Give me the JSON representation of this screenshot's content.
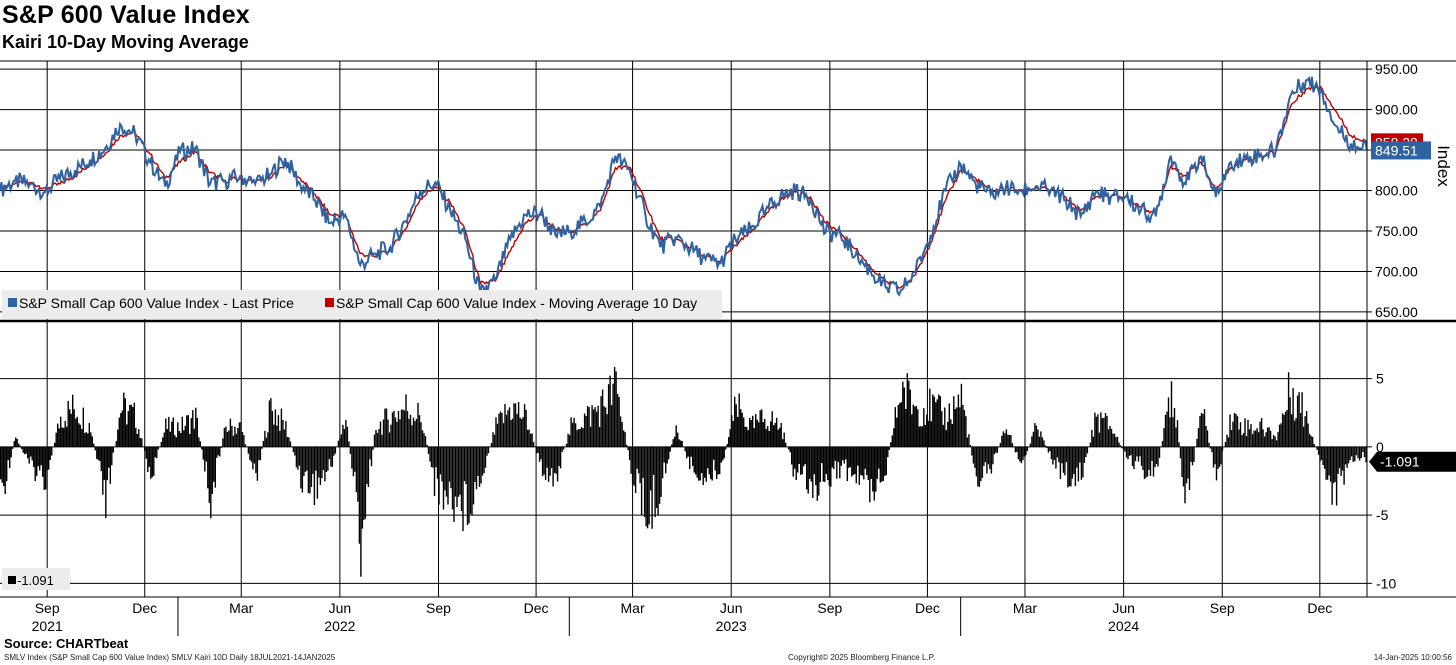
{
  "header": {
    "title": "S&P 600 Value Index",
    "subtitle": "Kairi 10-Day Moving Average"
  },
  "footer": {
    "source": "Source: CHARTbeat",
    "left": "SMLV Index (S&P Small Cap 600 Value Index) SMLV Kairi 10D  Daily 18JUL2021-14JAN2025",
    "center": "Copyright© 2025 Bloomberg Finance L.P.",
    "right": "14-Jan-2025 10:00:56"
  },
  "colors": {
    "price": "#2e62a0",
    "ma": "#c00000",
    "bars": "#000000",
    "grid": "#000000"
  },
  "chart_data": [
    {
      "type": "line",
      "ylabel": "Index",
      "ylim": [
        640,
        960
      ],
      "yticks": [
        "950.00",
        "900.00",
        "850.00",
        "800.00",
        "750.00",
        "700.00",
        "650.00"
      ],
      "xlim": [
        "2021-07-19",
        "2025-01-14"
      ],
      "month_ticks": [
        "Sep",
        "Dec",
        "Mar",
        "Jun",
        "Sep",
        "Dec",
        "Mar",
        "Jun",
        "Sep",
        "Dec",
        "Mar",
        "Jun",
        "Sep",
        "Dec"
      ],
      "year_ticks": [
        "2021",
        "2022",
        "2023",
        "2024"
      ],
      "grid": true,
      "legend_position": "bottom-left",
      "series": [
        {
          "name": "S&P Small Cap 600 Value Index - Last Price",
          "last_label": "849.51",
          "x": [
            "2021-07-19",
            "2021-08-02",
            "2021-08-16",
            "2021-08-30",
            "2021-09-13",
            "2021-09-27",
            "2021-10-11",
            "2021-10-25",
            "2021-11-08",
            "2021-11-22",
            "2021-12-06",
            "2021-12-20",
            "2022-01-03",
            "2022-01-17",
            "2022-01-31",
            "2022-02-14",
            "2022-02-28",
            "2022-03-14",
            "2022-03-28",
            "2022-04-11",
            "2022-04-25",
            "2022-05-09",
            "2022-05-23",
            "2022-06-06",
            "2022-06-20",
            "2022-07-04",
            "2022-07-18",
            "2022-08-01",
            "2022-08-15",
            "2022-08-29",
            "2022-09-12",
            "2022-09-26",
            "2022-10-10",
            "2022-10-24",
            "2022-11-07",
            "2022-11-21",
            "2022-12-05",
            "2022-12-19",
            "2023-01-02",
            "2023-01-16",
            "2023-01-30",
            "2023-02-13",
            "2023-02-27",
            "2023-03-13",
            "2023-03-27",
            "2023-04-10",
            "2023-04-24",
            "2023-05-08",
            "2023-05-22",
            "2023-06-05",
            "2023-06-19",
            "2023-07-03",
            "2023-07-17",
            "2023-07-31",
            "2023-08-14",
            "2023-08-28",
            "2023-09-11",
            "2023-09-25",
            "2023-10-09",
            "2023-10-23",
            "2023-11-06",
            "2023-11-20",
            "2023-12-04",
            "2023-12-18",
            "2024-01-01",
            "2024-01-15",
            "2024-01-29",
            "2024-02-12",
            "2024-02-26",
            "2024-03-11",
            "2024-03-25",
            "2024-04-08",
            "2024-04-22",
            "2024-05-06",
            "2024-05-20",
            "2024-06-03",
            "2024-06-17",
            "2024-07-01",
            "2024-07-15",
            "2024-07-29",
            "2024-08-12",
            "2024-08-26",
            "2024-09-09",
            "2024-09-23",
            "2024-10-07",
            "2024-10-21",
            "2024-11-04",
            "2024-11-18",
            "2024-12-02",
            "2024-12-16",
            "2024-12-30",
            "2025-01-14"
          ],
          "values": [
            800,
            812,
            808,
            798,
            815,
            825,
            838,
            852,
            882,
            870,
            835,
            805,
            848,
            852,
            808,
            812,
            818,
            808,
            820,
            840,
            808,
            788,
            760,
            770,
            708,
            722,
            730,
            762,
            800,
            810,
            775,
            740,
            672,
            690,
            740,
            770,
            772,
            745,
            750,
            762,
            780,
            843,
            822,
            770,
            730,
            742,
            728,
            715,
            710,
            740,
            752,
            775,
            793,
            800,
            790,
            748,
            745,
            720,
            700,
            680,
            676,
            700,
            745,
            800,
            832,
            808,
            795,
            803,
            800,
            805,
            800,
            788,
            768,
            798,
            792,
            792,
            775,
            768,
            843,
            808,
            842,
            792,
            835,
            840,
            845,
            850,
            918,
            936,
            925,
            880,
            858,
            849.51
          ]
        },
        {
          "name": "S&P Small Cap 600 Value Index - Moving Average 10 Day",
          "last_label": "858.28",
          "x": [
            "2021-07-19",
            "2021-08-02",
            "2021-08-16",
            "2021-08-30",
            "2021-09-13",
            "2021-09-27",
            "2021-10-11",
            "2021-10-25",
            "2021-11-08",
            "2021-11-22",
            "2021-12-06",
            "2021-12-20",
            "2022-01-03",
            "2022-01-17",
            "2022-01-31",
            "2022-02-14",
            "2022-02-28",
            "2022-03-14",
            "2022-03-28",
            "2022-04-11",
            "2022-04-25",
            "2022-05-09",
            "2022-05-23",
            "2022-06-06",
            "2022-06-20",
            "2022-07-04",
            "2022-07-18",
            "2022-08-01",
            "2022-08-15",
            "2022-08-29",
            "2022-09-12",
            "2022-09-26",
            "2022-10-10",
            "2022-10-24",
            "2022-11-07",
            "2022-11-21",
            "2022-12-05",
            "2022-12-19",
            "2023-01-02",
            "2023-01-16",
            "2023-01-30",
            "2023-02-13",
            "2023-02-27",
            "2023-03-13",
            "2023-03-27",
            "2023-04-10",
            "2023-04-24",
            "2023-05-08",
            "2023-05-22",
            "2023-06-05",
            "2023-06-19",
            "2023-07-03",
            "2023-07-17",
            "2023-07-31",
            "2023-08-14",
            "2023-08-28",
            "2023-09-11",
            "2023-09-25",
            "2023-10-09",
            "2023-10-23",
            "2023-11-06",
            "2023-11-20",
            "2023-12-04",
            "2023-12-18",
            "2024-01-01",
            "2024-01-15",
            "2024-01-29",
            "2024-02-12",
            "2024-02-26",
            "2024-03-11",
            "2024-03-25",
            "2024-04-08",
            "2024-04-22",
            "2024-05-06",
            "2024-05-20",
            "2024-06-03",
            "2024-06-17",
            "2024-07-01",
            "2024-07-15",
            "2024-07-29",
            "2024-08-12",
            "2024-08-26",
            "2024-09-09",
            "2024-09-23",
            "2024-10-07",
            "2024-10-21",
            "2024-11-04",
            "2024-11-18",
            "2024-12-02",
            "2024-12-16",
            "2024-12-30",
            "2025-01-14"
          ],
          "values": [
            805,
            808,
            810,
            803,
            808,
            818,
            832,
            845,
            868,
            872,
            845,
            815,
            835,
            848,
            822,
            812,
            815,
            810,
            815,
            832,
            815,
            795,
            770,
            770,
            722,
            718,
            726,
            752,
            790,
            805,
            785,
            750,
            685,
            688,
            725,
            760,
            770,
            752,
            750,
            758,
            775,
            828,
            828,
            785,
            740,
            740,
            730,
            718,
            712,
            732,
            748,
            770,
            788,
            798,
            792,
            760,
            748,
            728,
            705,
            688,
            680,
            696,
            735,
            788,
            825,
            815,
            800,
            802,
            801,
            803,
            801,
            792,
            775,
            792,
            793,
            792,
            780,
            772,
            830,
            818,
            835,
            800,
            828,
            838,
            843,
            848,
            905,
            925,
            928,
            898,
            868,
            858.28
          ]
        }
      ]
    },
    {
      "type": "bar",
      "title": "",
      "ylim": [
        -11,
        9
      ],
      "yticks": [
        "5",
        "0",
        "-5",
        "-10"
      ],
      "legend_position": "bottom-left",
      "series": [
        {
          "name": "",
          "last_label": "-1.091",
          "legend_label": "-1.091",
          "x": [
            "2021-07-19",
            "2021-08-02",
            "2021-08-16",
            "2021-08-30",
            "2021-09-13",
            "2021-09-27",
            "2021-10-11",
            "2021-10-25",
            "2021-11-08",
            "2021-11-22",
            "2021-12-06",
            "2021-12-20",
            "2022-01-03",
            "2022-01-17",
            "2022-01-31",
            "2022-02-14",
            "2022-02-28",
            "2022-03-14",
            "2022-03-28",
            "2022-04-11",
            "2022-04-25",
            "2022-05-09",
            "2022-05-23",
            "2022-06-06",
            "2022-06-20",
            "2022-07-04",
            "2022-07-18",
            "2022-08-01",
            "2022-08-15",
            "2022-08-29",
            "2022-09-12",
            "2022-09-26",
            "2022-10-10",
            "2022-10-24",
            "2022-11-07",
            "2022-11-21",
            "2022-12-05",
            "2022-12-19",
            "2023-01-02",
            "2023-01-16",
            "2023-01-30",
            "2023-02-13",
            "2023-02-27",
            "2023-03-13",
            "2023-03-27",
            "2023-04-10",
            "2023-04-24",
            "2023-05-08",
            "2023-05-22",
            "2023-06-05",
            "2023-06-19",
            "2023-07-03",
            "2023-07-17",
            "2023-07-31",
            "2023-08-14",
            "2023-08-28",
            "2023-09-11",
            "2023-09-25",
            "2023-10-09",
            "2023-10-23",
            "2023-11-06",
            "2023-11-20",
            "2023-12-04",
            "2023-12-18",
            "2024-01-01",
            "2024-01-15",
            "2024-01-29",
            "2024-02-12",
            "2024-02-26",
            "2024-03-11",
            "2024-03-25",
            "2024-04-08",
            "2024-04-22",
            "2024-05-06",
            "2024-05-20",
            "2024-06-03",
            "2024-06-17",
            "2024-07-01",
            "2024-07-15",
            "2024-07-29",
            "2024-08-12",
            "2024-08-26",
            "2024-09-09",
            "2024-09-23",
            "2024-10-07",
            "2024-10-21",
            "2024-11-04",
            "2024-11-18",
            "2024-12-02",
            "2024-12-16",
            "2024-12-30",
            "2025-01-14"
          ],
          "values": [
            -5,
            1,
            -2,
            -3,
            3,
            4,
            2,
            -6,
            4,
            3,
            -3,
            2,
            2,
            3,
            -5,
            2,
            2,
            -3,
            4,
            2,
            -3,
            -4,
            -2,
            3,
            -9,
            2,
            3,
            4,
            3,
            -4,
            -5,
            -6,
            -3,
            2,
            4,
            3,
            -2,
            -3,
            2,
            3,
            4,
            6,
            -2,
            -7,
            -4,
            2,
            -2,
            -3,
            -2,
            4,
            2,
            3,
            2,
            -3,
            -4,
            -3,
            -2,
            -3,
            -4,
            -2,
            6,
            4,
            4,
            3,
            5,
            -3,
            -2,
            2,
            -2,
            2,
            -1,
            -3,
            -3,
            3,
            2,
            -1,
            -2,
            -3,
            7,
            -6,
            4,
            -3,
            3,
            2,
            2,
            1,
            6,
            3,
            -2,
            -5,
            -1,
            -1.091
          ]
        }
      ]
    }
  ]
}
